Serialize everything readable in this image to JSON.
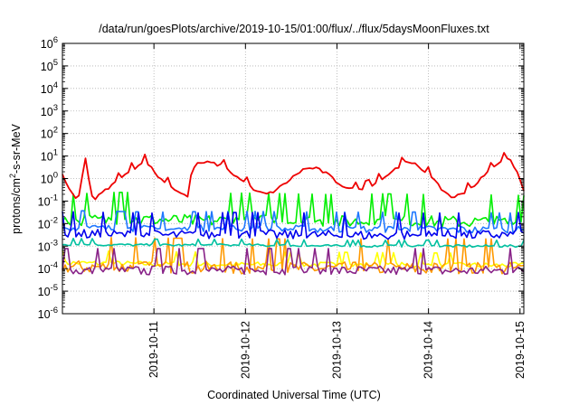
{
  "chart_data": {
    "type": "line",
    "title": "/data/run/goesPlots/archive/2019-10-15/01:00/flux/../flux/5daysMoonFluxes.txt",
    "xlabel": "Coordinated Universal Time (UTC)",
    "ylabel": {
      "prefix": "protons/cm",
      "superscript": "2",
      "suffix": "-s-sr-MeV"
    },
    "x_axis": {
      "type": "date",
      "range": [
        "2019-10-10T00:00",
        "2019-10-15T01:00"
      ],
      "tick_labels": [
        "2019-10-11",
        "2019-10-12",
        "2019-10-13",
        "2019-10-14",
        "2019-10-15"
      ]
    },
    "y_axis": {
      "scale": "log",
      "range": [
        1e-06,
        1000000.0
      ],
      "tick_labels": [
        {
          "base": "10",
          "exp": "-6"
        },
        {
          "base": "10",
          "exp": "-5"
        },
        {
          "base": "10",
          "exp": "-4"
        },
        {
          "base": "10",
          "exp": "-3"
        },
        {
          "base": "10",
          "exp": "-2"
        },
        {
          "base": "10",
          "exp": "-1"
        },
        {
          "base": "10",
          "exp": "0"
        },
        {
          "base": "10",
          "exp": "1"
        },
        {
          "base": "10",
          "exp": "2"
        },
        {
          "base": "10",
          "exp": "3"
        },
        {
          "base": "10",
          "exp": "4"
        },
        {
          "base": "10",
          "exp": "5"
        },
        {
          "base": "10",
          "exp": "6"
        }
      ]
    },
    "grid": true,
    "legend": "none",
    "series": [
      {
        "color": "#ee0000",
        "x": [
          "2019-10-10T00:00",
          "2019-10-10T02:00",
          "2019-10-10T04:00",
          "2019-10-10T06:00",
          "2019-10-10T08:00",
          "2019-10-10T10:00",
          "2019-10-10T13:00",
          "2019-10-10T16:00",
          "2019-10-10T19:00",
          "2019-10-10T22:00",
          "2019-10-11T00:00",
          "2019-10-11T03:00",
          "2019-10-11T06:00",
          "2019-10-11T09:00",
          "2019-10-11T10:00",
          "2019-10-11T12:00",
          "2019-10-11T15:00",
          "2019-10-11T18:00",
          "2019-10-11T21:00",
          "2019-10-12T00:00",
          "2019-10-12T03:00",
          "2019-10-12T06:00",
          "2019-10-12T09:00",
          "2019-10-12T12:00",
          "2019-10-12T15:00",
          "2019-10-12T18:00",
          "2019-10-12T21:00",
          "2019-10-13T00:00",
          "2019-10-13T03:00",
          "2019-10-13T06:00",
          "2019-10-13T09:00",
          "2019-10-13T12:00",
          "2019-10-13T15:00",
          "2019-10-13T18:00",
          "2019-10-13T21:00",
          "2019-10-14T00:00",
          "2019-10-14T03:00",
          "2019-10-14T06:00",
          "2019-10-14T09:00",
          "2019-10-14T12:00",
          "2019-10-14T15:00",
          "2019-10-14T18:00",
          "2019-10-14T21:00",
          "2019-10-15T00:00",
          "2019-10-15T01:00"
        ],
        "values": [
          1.5,
          0.3,
          0.08,
          8,
          0.1,
          0.2,
          0.5,
          1.2,
          3,
          6,
          2,
          0.6,
          0.3,
          0.15,
          3,
          5,
          5,
          3.5,
          1.5,
          0.6,
          0.25,
          0.2,
          0.4,
          1,
          2.5,
          3,
          1.8,
          0.7,
          0.35,
          0.3,
          0.45,
          1,
          2.5,
          5,
          4,
          1.5,
          0.4,
          0.15,
          0.2,
          0.5,
          1.5,
          4,
          9,
          1,
          0.3
        ]
      },
      {
        "color": "#00ee00",
        "x": [
          "2019-10-10T00:00",
          "2019-10-10T12:00",
          "2019-10-11T00:00",
          "2019-10-11T12:00",
          "2019-10-12T00:00",
          "2019-10-12T12:00",
          "2019-10-13T00:00",
          "2019-10-13T12:00",
          "2019-10-14T00:00",
          "2019-10-14T12:00",
          "2019-10-15T00:00",
          "2019-10-15T01:00"
        ],
        "values": [
          0.012,
          0.015,
          0.015,
          0.013,
          0.014,
          0.013,
          0.012,
          0.013,
          0.012,
          0.012,
          0.011,
          0.011
        ]
      },
      {
        "color": "#1f77ff",
        "x": [
          "2019-10-10T00:00",
          "2019-10-11T00:00",
          "2019-10-12T00:00",
          "2019-10-13T00:00",
          "2019-10-14T00:00",
          "2019-10-15T00:00",
          "2019-10-15T01:00"
        ],
        "values": [
          0.0065,
          0.0055,
          0.006,
          0.0055,
          0.0055,
          0.005,
          0.005
        ]
      },
      {
        "color": "#0000ee",
        "x": [
          "2019-10-10T00:00",
          "2019-10-11T00:00",
          "2019-10-12T00:00",
          "2019-10-13T00:00",
          "2019-10-14T00:00",
          "2019-10-15T00:00",
          "2019-10-15T01:00"
        ],
        "values": [
          0.0035,
          0.003,
          0.0032,
          0.003,
          0.003,
          0.0032,
          0.0032
        ]
      },
      {
        "color": "#00c0a0",
        "x": [
          "2019-10-10T00:00",
          "2019-10-11T00:00",
          "2019-10-12T00:00",
          "2019-10-13T00:00",
          "2019-10-14T00:00",
          "2019-10-15T00:00",
          "2019-10-15T01:00"
        ],
        "values": [
          0.0012,
          0.0011,
          0.0011,
          0.001,
          0.001,
          0.001,
          0.001
        ]
      },
      {
        "color": "#ffff00",
        "x": [
          "2019-10-10T00:00",
          "2019-10-11T00:00",
          "2019-10-12T00:00",
          "2019-10-13T00:00",
          "2019-10-14T00:00",
          "2019-10-15T00:00",
          "2019-10-15T01:00"
        ],
        "values": [
          0.00018,
          0.00016,
          0.00015,
          0.00015,
          0.00014,
          0.00014,
          0.00014
        ]
      },
      {
        "color": "#ff9900",
        "x": [
          "2019-10-10T00:00",
          "2019-10-11T00:00",
          "2019-10-12T00:00",
          "2019-10-13T00:00",
          "2019-10-14T00:00",
          "2019-10-15T00:00",
          "2019-10-15T01:00"
        ],
        "values": [
          0.00012,
          0.00011,
          0.0001,
          0.0001,
          0.0001,
          0.0001,
          0.0001
        ]
      },
      {
        "color": "#882288",
        "x": [
          "2019-10-10T00:00",
          "2019-10-11T00:00",
          "2019-10-12T00:00",
          "2019-10-13T00:00",
          "2019-10-14T00:00",
          "2019-10-15T00:00",
          "2019-10-15T01:00"
        ],
        "values": [
          8e-05,
          8e-05,
          8e-05,
          8e-05,
          8e-05,
          8e-05,
          8e-05
        ]
      }
    ]
  }
}
